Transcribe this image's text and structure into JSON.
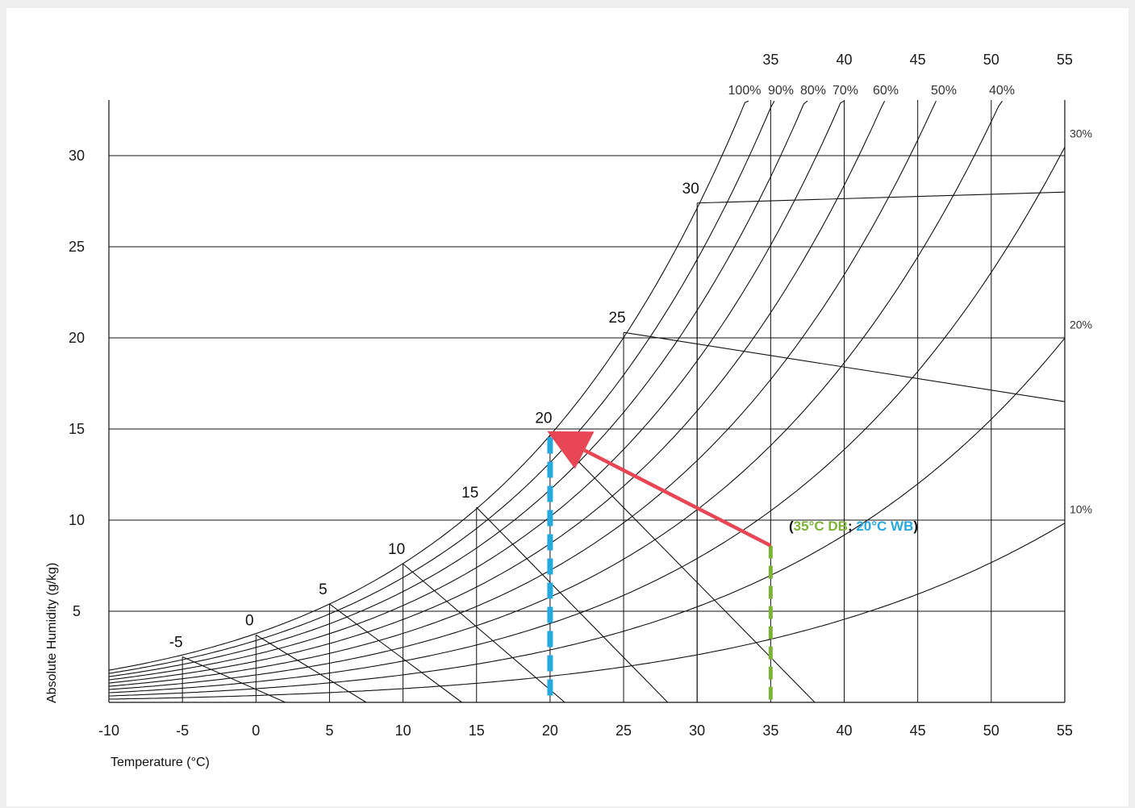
{
  "chart_data": {
    "type": "line",
    "xlabel": "Temperature (°C)",
    "ylabel": "Absolute Humidity (g/kg)",
    "xlim": [
      -10,
      55
    ],
    "ylim": [
      0,
      33
    ],
    "grid": true,
    "x_ticks": [
      "-10",
      "-5",
      "0",
      "5",
      "10",
      "15",
      "20",
      "25",
      "30",
      "35",
      "40",
      "45",
      "50",
      "55"
    ],
    "y_ticks": [
      "5",
      "10",
      "15",
      "20",
      "25",
      "30"
    ],
    "top_ticks": [
      "35",
      "40",
      "45",
      "50",
      "55"
    ],
    "rh_series": [
      {
        "name": "100%",
        "rh": 1.0
      },
      {
        "name": "90%",
        "rh": 0.9
      },
      {
        "name": "80%",
        "rh": 0.8
      },
      {
        "name": "70%",
        "rh": 0.7
      },
      {
        "name": "60%",
        "rh": 0.6
      },
      {
        "name": "50%",
        "rh": 0.5
      },
      {
        "name": "40%",
        "rh": 0.4
      },
      {
        "name": "30%",
        "rh": 0.3
      },
      {
        "name": "20%",
        "rh": 0.2
      },
      {
        "name": "10%",
        "rh": 0.1
      }
    ],
    "wet_bulb_lines": [
      {
        "name": "-5",
        "t": -5,
        "w": 2.5,
        "x_end": 2
      },
      {
        "name": "0",
        "t": 0,
        "w": 3.7,
        "x_end": 7.5
      },
      {
        "name": "5",
        "t": 5,
        "w": 5.4,
        "x_end": 14
      },
      {
        "name": "10",
        "t": 10,
        "w": 7.6,
        "x_end": 21
      },
      {
        "name": "15",
        "t": 15,
        "w": 10.7,
        "x_end": 28
      },
      {
        "name": "20",
        "t": 20,
        "w": 14.8,
        "x_end": 38
      },
      {
        "name": "25",
        "t": 25,
        "w": 20.3,
        "x_end": 55,
        "y_end": 16.5
      },
      {
        "name": "30",
        "t": 30,
        "w": 27.4,
        "x_end": 55,
        "y_end": 28.0
      }
    ],
    "process": {
      "start": {
        "t": 35,
        "w": 8.6
      },
      "end": {
        "t": 20,
        "w": 14.8
      },
      "dry_bulb": {
        "value": "35",
        "label": "35°C DB"
      },
      "wet_bulb": {
        "value": "20",
        "label": "20°C WB"
      },
      "paren_open": "(",
      "separator": "; ",
      "paren_close": ")"
    },
    "colors": {
      "grid": "#111111",
      "dry_bulb": "#7cb334",
      "wet_bulb": "#25a9e0",
      "arrow": "#e84655"
    }
  }
}
